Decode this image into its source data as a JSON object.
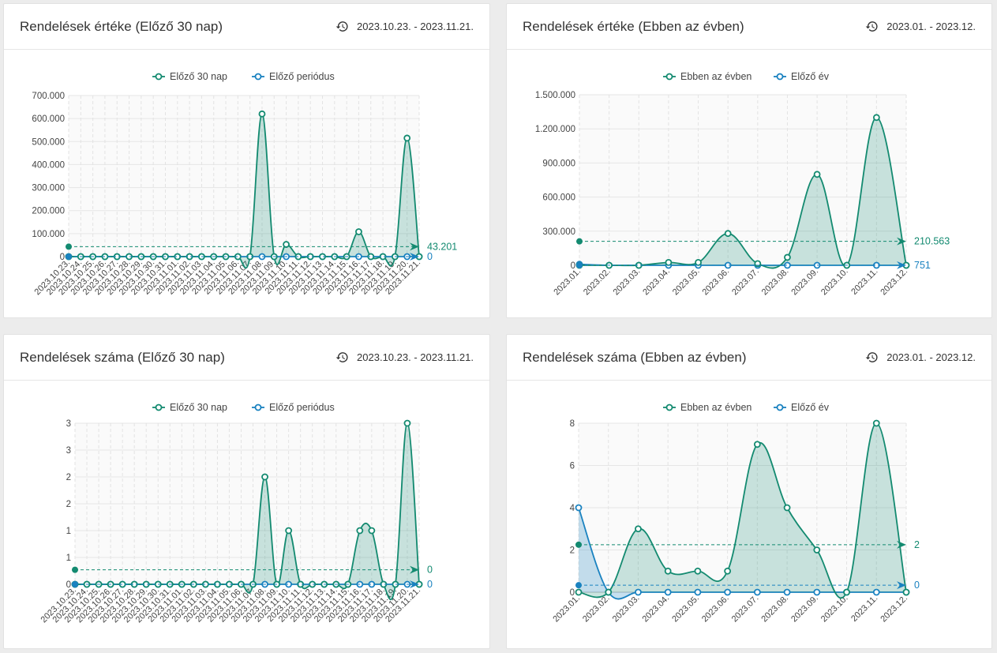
{
  "colors": {
    "current": "#138a70",
    "previous": "#1a82c0",
    "fill_current": "rgba(19,138,112,0.22)",
    "fill_previous": "rgba(26,130,192,0.25)"
  },
  "cards": [
    {
      "title": "Rendelések értéke (Előző 30 nap)",
      "range": "2023.10.23. - 2023.11.21."
    },
    {
      "title": "Rendelések értéke (Ebben az évben)",
      "range": "2023.01. - 2023.12."
    },
    {
      "title": "Rendelések száma (Előző 30 nap)",
      "range": "2023.10.23. - 2023.11.21."
    },
    {
      "title": "Rendelések száma (Ebben az évben)",
      "range": "2023.01. - 2023.12."
    }
  ],
  "chart_data": [
    {
      "type": "area",
      "legend_position": "top",
      "categories": [
        "2023.10.23.",
        "2023.10.24.",
        "2023.10.25.",
        "2023.10.26.",
        "2023.10.27.",
        "2023.10.28.",
        "2023.10.29.",
        "2023.10.30.",
        "2023.10.31.",
        "2023.11.01.",
        "2023.11.02.",
        "2023.11.03.",
        "2023.11.04.",
        "2023.11.05.",
        "2023.11.06.",
        "2023.11.07.",
        "2023.11.08.",
        "2023.11.09.",
        "2023.11.10.",
        "2023.11.11.",
        "2023.11.12.",
        "2023.11.13.",
        "2023.11.14.",
        "2023.11.15.",
        "2023.11.16.",
        "2023.11.17.",
        "2023.11.18.",
        "2023.11.19.",
        "2023.11.20.",
        "2023.11.21."
      ],
      "series": [
        {
          "name": "Előző 30 nap",
          "values": [
            0,
            0,
            0,
            0,
            0,
            0,
            0,
            0,
            0,
            0,
            0,
            0,
            0,
            0,
            0,
            0,
            620000,
            0,
            53000,
            0,
            0,
            0,
            0,
            0,
            108000,
            0,
            0,
            0,
            515000,
            0
          ]
        },
        {
          "name": "Előző periódus",
          "values": [
            0,
            0,
            0,
            0,
            0,
            0,
            0,
            0,
            0,
            0,
            0,
            0,
            0,
            0,
            0,
            0,
            0,
            0,
            0,
            0,
            0,
            0,
            0,
            0,
            0,
            0,
            0,
            0,
            0,
            0
          ]
        }
      ],
      "averages": [
        {
          "value": 43201,
          "label": "43.201"
        },
        {
          "value": 0,
          "label": "0"
        }
      ],
      "yticks": [
        "0",
        "100.000",
        "200.000",
        "300.000",
        "400.000",
        "500.000",
        "600.000",
        "700.000"
      ],
      "ylim": [
        0,
        700000
      ]
    },
    {
      "type": "area",
      "legend_position": "top",
      "categories": [
        "2023.01.",
        "2023.02.",
        "2023.03.",
        "2023.04.",
        "2023.05.",
        "2023.06.",
        "2023.07.",
        "2023.08.",
        "2023.09.",
        "2023.10.",
        "2023.11.",
        "2023.12."
      ],
      "series": [
        {
          "name": "Ebben az évben",
          "values": [
            0,
            0,
            0,
            25000,
            25000,
            280000,
            15000,
            70000,
            800000,
            0,
            1300000,
            0
          ]
        },
        {
          "name": "Előző év",
          "values": [
            9000,
            0,
            0,
            0,
            0,
            0,
            0,
            0,
            0,
            0,
            0,
            0
          ]
        }
      ],
      "averages": [
        {
          "value": 210563,
          "label": "210.563"
        },
        {
          "value": 751,
          "label": "751"
        }
      ],
      "yticks": [
        "0",
        "300.000",
        "600.000",
        "900.000",
        "1.200.000",
        "1.500.000"
      ],
      "ylim": [
        0,
        1500000
      ]
    },
    {
      "type": "area",
      "legend_position": "top",
      "categories": [
        "2023.10.23.",
        "2023.10.24.",
        "2023.10.25.",
        "2023.10.26.",
        "2023.10.27.",
        "2023.10.28.",
        "2023.10.29.",
        "2023.10.30.",
        "2023.10.31.",
        "2023.11.01.",
        "2023.11.02.",
        "2023.11.03.",
        "2023.11.04.",
        "2023.11.05.",
        "2023.11.06.",
        "2023.11.07.",
        "2023.11.08.",
        "2023.11.09.",
        "2023.11.10.",
        "2023.11.11.",
        "2023.11.12.",
        "2023.11.13.",
        "2023.11.14.",
        "2023.11.15.",
        "2023.11.16.",
        "2023.11.17.",
        "2023.11.18.",
        "2023.11.19.",
        "2023.11.20.",
        "2023.11.21."
      ],
      "series": [
        {
          "name": "Előző 30 nap",
          "values": [
            0,
            0,
            0,
            0,
            0,
            0,
            0,
            0,
            0,
            0,
            0,
            0,
            0,
            0,
            0,
            0,
            2,
            0,
            1,
            0,
            0,
            0,
            0,
            0,
            1,
            1,
            0,
            0,
            3,
            0
          ]
        },
        {
          "name": "Előző periódus",
          "values": [
            0,
            0,
            0,
            0,
            0,
            0,
            0,
            0,
            0,
            0,
            0,
            0,
            0,
            0,
            0,
            0,
            0,
            0,
            0,
            0,
            0,
            0,
            0,
            0,
            0,
            0,
            0,
            0,
            0,
            0
          ]
        }
      ],
      "averages": [
        {
          "value": 0.27,
          "label": "0"
        },
        {
          "value": 0,
          "label": "0"
        }
      ],
      "yticks": [
        "0",
        "1",
        "1",
        "2",
        "2",
        "3",
        "3"
      ],
      "ylim": [
        0,
        3
      ]
    },
    {
      "type": "area",
      "legend_position": "top",
      "categories": [
        "2023.01.",
        "2023.02.",
        "2023.03.",
        "2023.04.",
        "2023.05.",
        "2023.06.",
        "2023.07.",
        "2023.08.",
        "2023.09.",
        "2023.10.",
        "2023.11.",
        "2023.12."
      ],
      "series": [
        {
          "name": "Ebben az évben",
          "values": [
            0,
            0,
            3,
            1,
            1,
            1,
            7,
            4,
            2,
            0,
            8,
            0
          ]
        },
        {
          "name": "Előző év",
          "values": [
            4,
            0,
            0,
            0,
            0,
            0,
            0,
            0,
            0,
            0,
            0,
            0
          ]
        }
      ],
      "averages": [
        {
          "value": 2.25,
          "label": "2"
        },
        {
          "value": 0.33,
          "label": "0"
        }
      ],
      "yticks": [
        "0",
        "2",
        "4",
        "6",
        "8"
      ],
      "ylim": [
        0,
        8
      ]
    }
  ]
}
